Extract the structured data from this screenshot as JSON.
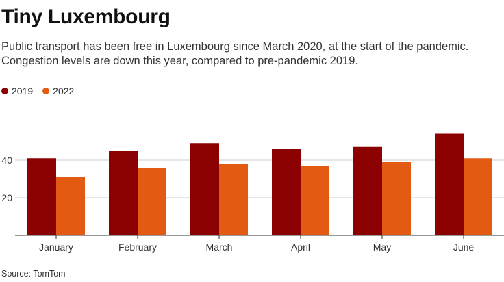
{
  "title": "Tiny Luxembourg",
  "subtitle": "Public transport has been free in Luxembourg since March 2020, at the start of the pandemic. Congestion levels are down this year, compared to pre-pandemic 2019.",
  "source": "Source: TomTom",
  "colors": {
    "series_2019": "#8b0000",
    "series_2022": "#e35b12",
    "grid": "#cccccc",
    "axis": "#333333"
  },
  "chart_data": {
    "type": "bar",
    "title": "Tiny Luxembourg",
    "xlabel": "",
    "ylabel": "",
    "categories": [
      "January",
      "February",
      "March",
      "April",
      "May",
      "June"
    ],
    "series": [
      {
        "name": "2019",
        "values": [
          41,
          45,
          49,
          46,
          47,
          54
        ]
      },
      {
        "name": "2022",
        "values": [
          31,
          36,
          38,
          37,
          39,
          41
        ]
      }
    ],
    "ylim": [
      0,
      60
    ],
    "yticks": [
      20,
      40
    ],
    "grid": true,
    "legend_position": "top-left"
  }
}
